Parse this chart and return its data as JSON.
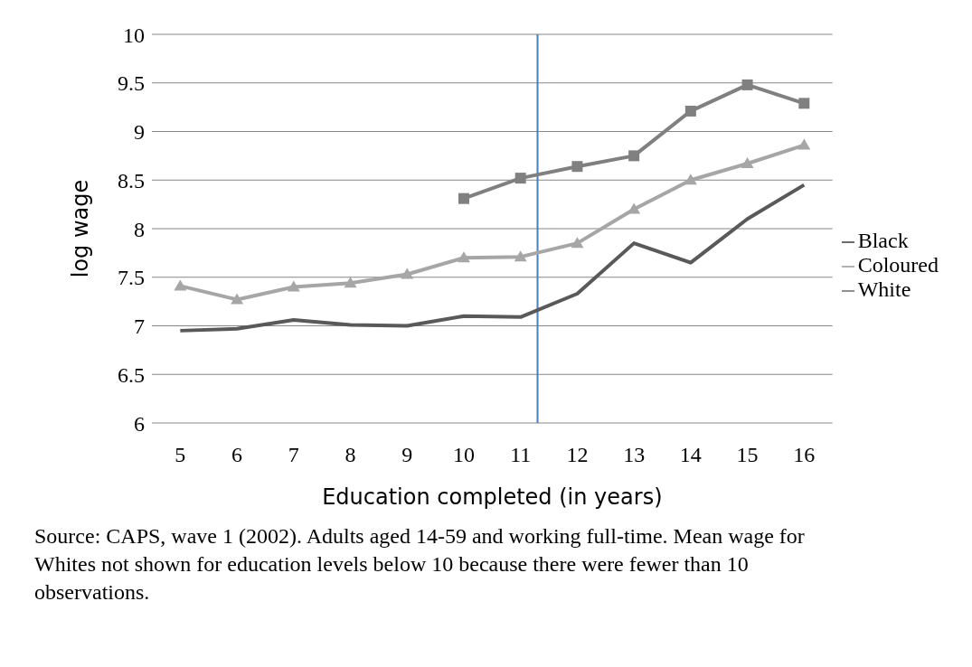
{
  "chart_data": {
    "type": "line",
    "xlabel": "Education completed (in years)",
    "ylabel": "log wage",
    "x": [
      5,
      6,
      7,
      8,
      9,
      10,
      11,
      12,
      13,
      14,
      15,
      16
    ],
    "xlim": [
      4.5,
      16.5
    ],
    "xticks": [
      5,
      6,
      7,
      8,
      9,
      10,
      11,
      12,
      13,
      14,
      15,
      16
    ],
    "ylim": [
      6,
      10
    ],
    "yticks": [
      6,
      6.5,
      7,
      7.5,
      8,
      8.5,
      9,
      9.5,
      10
    ],
    "grid": "y",
    "legend": "right",
    "line_style": "solid",
    "series": [
      {
        "name": "Black",
        "color": "#595959",
        "marker": "none",
        "values": [
          6.95,
          6.97,
          7.06,
          7.01,
          7.0,
          7.1,
          7.09,
          7.33,
          7.85,
          7.65,
          8.1,
          8.45
        ]
      },
      {
        "name": "Coloured",
        "color": "#a6a6a6",
        "marker": "triangle",
        "values": [
          7.41,
          7.27,
          7.4,
          7.44,
          7.53,
          7.7,
          7.71,
          7.85,
          8.2,
          8.5,
          8.67,
          8.86
        ]
      },
      {
        "name": "White",
        "color": "#808080",
        "marker": "square",
        "values": [
          null,
          null,
          null,
          null,
          null,
          8.31,
          8.52,
          8.64,
          8.75,
          9.21,
          9.48,
          9.29
        ]
      }
    ],
    "ref_lines": [
      {
        "axis": "x",
        "value": 11.3,
        "color": "#4a7ebb"
      }
    ],
    "annotations": [
      "Source: CAPS, wave 1 (2002). Adults aged 14-59 and working full-time. Mean wage for Whites  not shown for education levels below 10 because there were fewer than 10 observations."
    ]
  }
}
